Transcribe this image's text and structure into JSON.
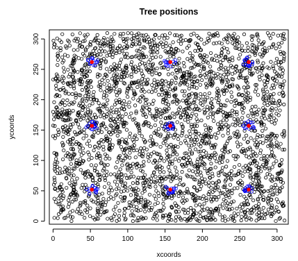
{
  "chart_data": {
    "type": "scatter",
    "title": "Tree positions",
    "xlabel": "xcoords",
    "ylabel": "ycoords",
    "xlim": [
      -5,
      315
    ],
    "ylim": [
      -5,
      315
    ],
    "xticks": [
      0,
      50,
      100,
      150,
      200,
      250,
      300
    ],
    "yticks": [
      0,
      50,
      100,
      150,
      200,
      250,
      300
    ],
    "grid": false,
    "legend": "none",
    "marker": "open-circle",
    "colors": {
      "trees": "#000000",
      "neighborhood": "#0000ff",
      "center": "#ff0000"
    },
    "background_points": {
      "count": 3000,
      "x_range": [
        0,
        310
      ],
      "y_range": [
        0,
        310
      ]
    },
    "centers": [
      {
        "x": 52,
        "y": 52
      },
      {
        "x": 157,
        "y": 52
      },
      {
        "x": 262,
        "y": 52
      },
      {
        "x": 52,
        "y": 157
      },
      {
        "x": 157,
        "y": 157
      },
      {
        "x": 262,
        "y": 157
      },
      {
        "x": 52,
        "y": 262
      },
      {
        "x": 157,
        "y": 262
      },
      {
        "x": 262,
        "y": 262
      }
    ],
    "neighborhood_radius": 8
  }
}
